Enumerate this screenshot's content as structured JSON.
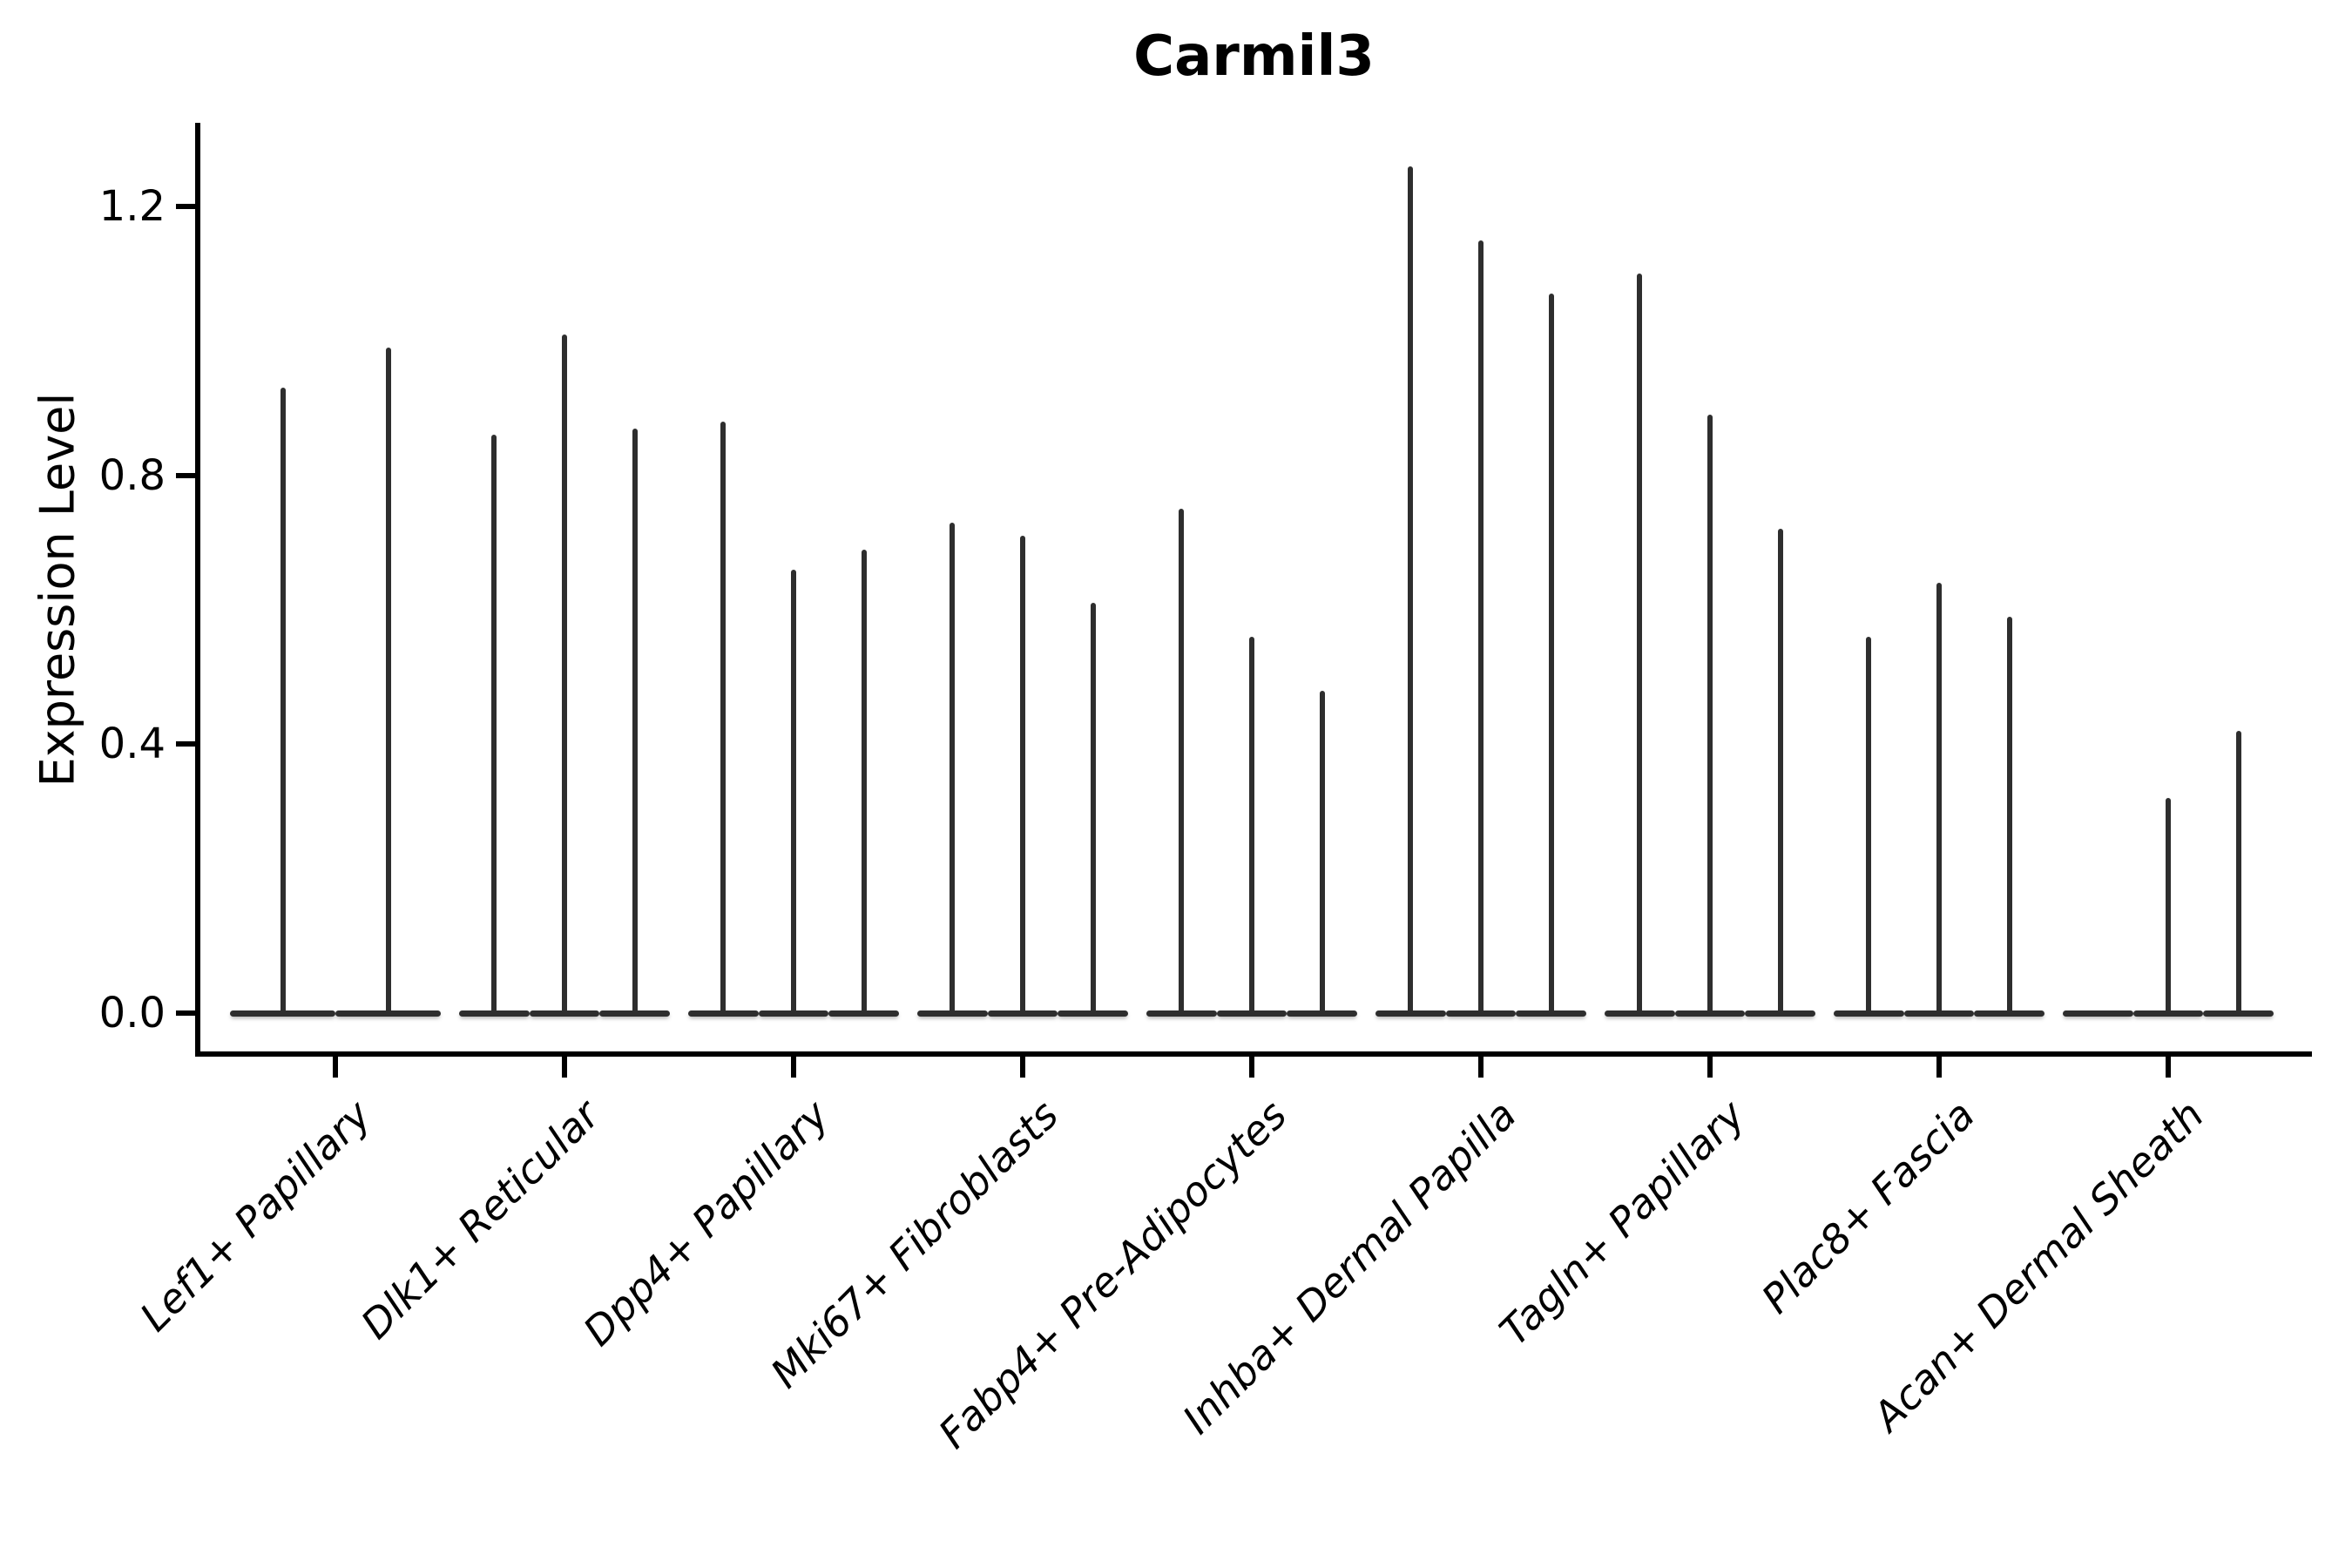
{
  "chart_data": {
    "type": "violin",
    "title": "Carmil3",
    "xlabel": "",
    "ylabel": "Expression Level",
    "yticks": [
      {
        "label": "0.0",
        "value": 0.0
      },
      {
        "label": "0.4",
        "value": 0.4
      },
      {
        "label": "0.8",
        "value": 0.8
      },
      {
        "label": "1.2",
        "value": 1.2
      }
    ],
    "ylim": [
      0,
      1.32
    ],
    "grid": false,
    "legend": null,
    "violin_color": "#2e2e2e",
    "axis_color": "#000000",
    "categories": [
      "Lef1+ Papillary",
      "Dlk1+ Reticular",
      "Dpp4+ Papillary",
      "Mki67+ Fibroblasts",
      "Fabp4+ Pre-Adipocytes",
      "Inhba+ Dermal Papilla",
      "Tagln+ Papillary",
      "Plac8+ Fascia",
      "Acan+ Dermal Sheath"
    ],
    "groups": [
      {
        "category": "Lef1+ Papillary",
        "violin_max_values": [
          0.93,
          0.99
        ]
      },
      {
        "category": "Dlk1+ Reticular",
        "violin_max_values": [
          0.86,
          1.01,
          0.87
        ]
      },
      {
        "category": "Dpp4+ Papillary",
        "violin_max_values": [
          0.88,
          0.66,
          0.69
        ]
      },
      {
        "category": "Mki67+ Fibroblasts",
        "violin_max_values": [
          0.73,
          0.71,
          0.61
        ]
      },
      {
        "category": "Fabp4+ Pre-Adipocytes",
        "violin_max_values": [
          0.75,
          0.56,
          0.48
        ]
      },
      {
        "category": "Inhba+ Dermal Papilla",
        "violin_max_values": [
          1.26,
          1.15,
          1.07
        ]
      },
      {
        "category": "Tagln+ Papillary",
        "violin_max_values": [
          1.1,
          0.89,
          0.72
        ]
      },
      {
        "category": "Plac8+ Fascia",
        "violin_max_values": [
          0.56,
          0.64,
          0.59
        ]
      },
      {
        "category": "Acan+ Dermal Sheath",
        "violin_max_values": [
          0.0,
          0.32,
          0.42
        ]
      }
    ]
  }
}
